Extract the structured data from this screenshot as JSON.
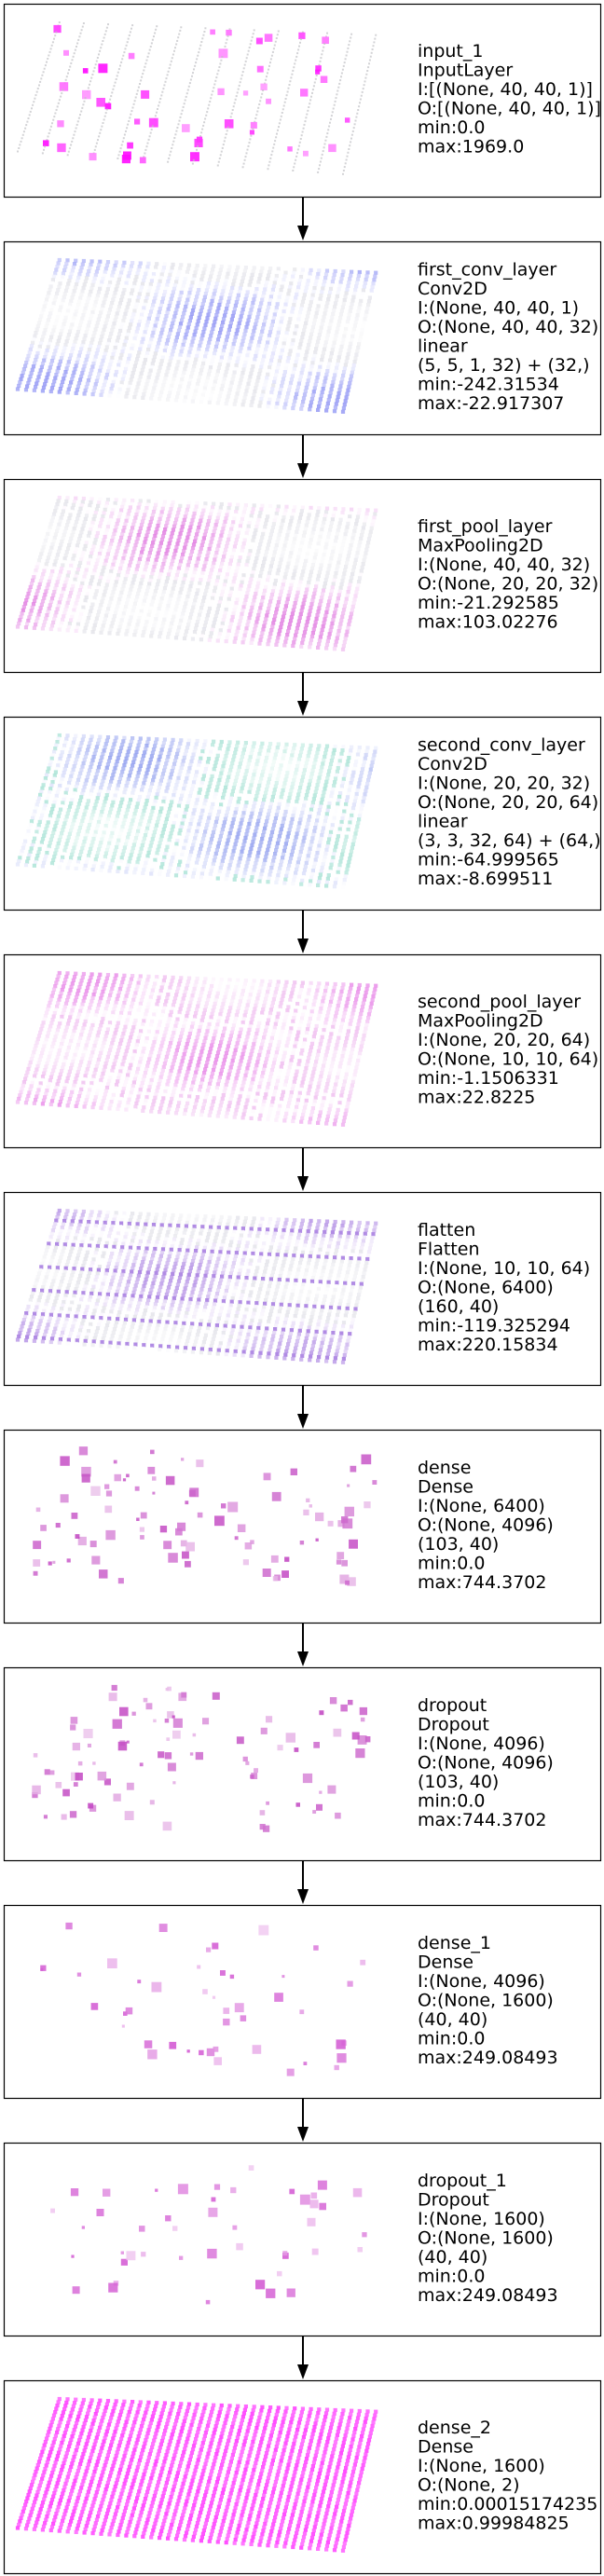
{
  "layers": [
    {
      "lines": [
        "input_1",
        "InputLayer",
        "I:[(None, 40, 40, 1)]",
        "O:[(None, 40, 40, 1)]",
        "min:0.0",
        "max:1969.0"
      ],
      "viz": {
        "type": "grid",
        "tint": "#ff00ff",
        "density": 0.1,
        "base": "light-gray-dots"
      }
    },
    {
      "lines": [
        "first_conv_layer",
        "Conv2D",
        "I:(None, 40, 40, 1)",
        "O:(None, 40, 40, 32)",
        "linear",
        "(5, 5, 1, 32) + (32,)",
        "min:-242.31534",
        "max:-22.917307"
      ],
      "viz": {
        "type": "grid",
        "tint": "#6b72f0",
        "density": 0.85,
        "base": "blue-white"
      }
    },
    {
      "lines": [
        "first_pool_layer",
        "MaxPooling2D",
        "I:(None, 40, 40, 32)",
        "O:(None, 20, 20, 32)",
        "min:-21.292585",
        "max:103.02276"
      ],
      "viz": {
        "type": "grid",
        "tint": "#d64fd6",
        "density": 0.55,
        "base": "gray-white"
      }
    },
    {
      "lines": [
        "second_conv_layer",
        "Conv2D",
        "I:(None, 20, 20, 32)",
        "O:(None, 20, 20, 64)",
        "linear",
        "(3, 3, 32, 64) + (64,)",
        "min:-64.999565",
        "max:-8.699511"
      ],
      "viz": {
        "type": "grid",
        "tint": "#6a7de8",
        "density": 0.85,
        "base": "teal-white"
      }
    },
    {
      "lines": [
        "second_pool_layer",
        "MaxPooling2D",
        "I:(None, 20, 20, 64)",
        "O:(None, 10, 10, 64)",
        "min:-1.1506331",
        "max:22.8225"
      ],
      "viz": {
        "type": "grid",
        "tint": "#e060e0",
        "density": 0.9,
        "base": "pink-white"
      }
    },
    {
      "lines": [
        "flatten",
        "Flatten",
        "I:(None, 10, 10, 64)",
        "O:(None, 6400)",
        "(160, 40)",
        "min:-119.325294",
        "max:220.15834"
      ],
      "viz": {
        "type": "grid",
        "tint": "#9a6adc",
        "density": 0.9,
        "base": "striped"
      }
    },
    {
      "lines": [
        "dense",
        "Dense",
        "I:(None, 6400)",
        "O:(None, 4096)",
        "(103, 40)",
        "min:0.0",
        "max:744.3702"
      ],
      "viz": {
        "type": "scatter",
        "tint": "#c040c0",
        "count": 95
      }
    },
    {
      "lines": [
        "dropout",
        "Dropout",
        "I:(None, 4096)",
        "O:(None, 4096)",
        "(103, 40)",
        "min:0.0",
        "max:744.3702"
      ],
      "viz": {
        "type": "scatter",
        "tint": "#c040c0",
        "count": 95
      }
    },
    {
      "lines": [
        "dense_1",
        "Dense",
        "I:(None, 4096)",
        "O:(None, 1600)",
        "(40, 40)",
        "min:0.0",
        "max:249.08493"
      ],
      "viz": {
        "type": "scatter",
        "tint": "#d050d0",
        "count": 45
      }
    },
    {
      "lines": [
        "dropout_1",
        "Dropout",
        "I:(None, 1600)",
        "O:(None, 1600)",
        "(40, 40)",
        "min:0.0",
        "max:249.08493"
      ],
      "viz": {
        "type": "scatter",
        "tint": "#d050d0",
        "count": 45
      }
    },
    {
      "lines": [
        "dense_2",
        "Dense",
        "I:(None, 1600)",
        "O:(None, 2)",
        "min:0.00015174235",
        "max:0.99984825"
      ],
      "viz": {
        "type": "solid",
        "tint": "#ff33ff",
        "density": 1.0
      }
    }
  ],
  "colors": {
    "border": "#000000",
    "arrow": "#000000"
  }
}
